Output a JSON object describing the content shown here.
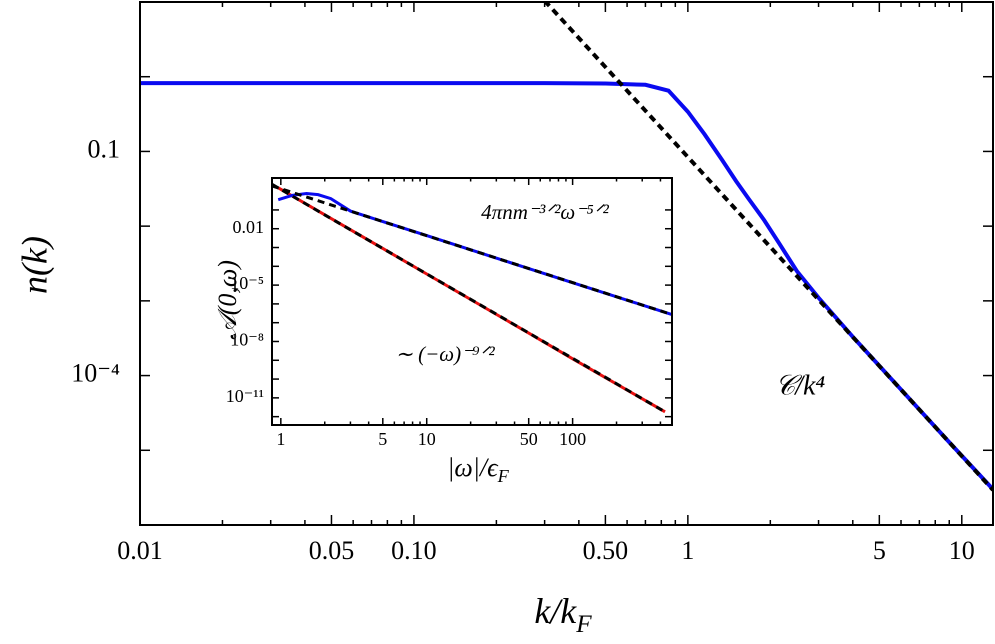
{
  "chart_data": [
    {
      "type": "line",
      "x_scale": "log",
      "y_scale": "log",
      "x_label": {
        "main": "k/k",
        "sub": "F"
      },
      "y_label": "n(k)",
      "xlim": [
        0.01,
        13
      ],
      "ylim": [
        1e-06,
        10
      ],
      "xticks": [
        0.01,
        0.05,
        {
          "value": 0.1,
          "label": "0.10"
        },
        {
          "value": 0.5,
          "label": "0.50"
        },
        1,
        5,
        10
      ],
      "xticks_minor": [
        0.02,
        0.03,
        0.04,
        0.06,
        0.07,
        0.08,
        0.09,
        0.2,
        0.3,
        0.4,
        0.6,
        0.7,
        0.8,
        0.9,
        2,
        3,
        4,
        6,
        7,
        8,
        9
      ],
      "yticks": [
        {
          "value": 0.1,
          "label": "0.1"
        },
        {
          "value": 0.0001,
          "label": "10⁻⁴"
        }
      ],
      "yticks_minor": [
        1,
        0.01,
        0.001,
        1e-05
      ],
      "annotations": [
        "𝒞/k⁴"
      ],
      "series": [
        {
          "color": "#0a0af0",
          "style": "solid",
          "x": [
            0.01,
            0.1,
            0.3,
            0.5,
            0.7,
            0.85,
            1,
            1.15,
            1.33,
            1.5,
            1.67,
            1.9,
            2.16,
            2.5,
            3,
            4,
            6,
            9,
            13
          ],
          "values": [
            0.82,
            0.82,
            0.82,
            0.81,
            0.78,
            0.65,
            0.34,
            0.17,
            0.078,
            0.04,
            0.023,
            0.012,
            0.0058,
            0.0025,
            0.0011,
            0.00033,
            6.5e-05,
            1.28e-05,
            3e-06
          ]
        },
        {
          "color": "#000000",
          "style": "dashed",
          "x": [
            0.3,
            13
          ],
          "values": [
            10.4,
            2.94e-06
          ]
        }
      ]
    },
    {
      "type": "line",
      "x_scale": "log",
      "y_scale": "log",
      "x_label": {
        "main": "|ω|/ϵ",
        "sub": "F"
      },
      "y_label": "𝒜(0,ω)",
      "xlim": [
        0.87,
        480
      ],
      "ylim": [
        3.6e-13,
        5
      ],
      "xticks": [
        1,
        5,
        10,
        50,
        100
      ],
      "xticks_minor": [
        2,
        3,
        4,
        6,
        7,
        8,
        9,
        20,
        30,
        40,
        60,
        70,
        80,
        90,
        200,
        300,
        400
      ],
      "yticks": [
        {
          "value": 0.01,
          "label": "0.01"
        },
        {
          "value": 1e-05,
          "label": "10⁻⁵"
        },
        {
          "value": 1e-08,
          "label": "10⁻⁸"
        },
        {
          "value": 1e-11,
          "label": "10⁻¹¹"
        }
      ],
      "yticks_minor": [
        0.1,
        0.001,
        0.0001,
        1e-06,
        1e-07,
        1e-09,
        1e-10,
        1e-12
      ],
      "annotations": [
        "4πnm⁻³ᐟ²ω⁻⁵ᐟ²",
        "∼ (−ω)⁻⁹ᐟ²"
      ],
      "series": [
        {
          "color": "#e81010",
          "style": "solid",
          "x": [
            0.96,
            2,
            5,
            10,
            50,
            100,
            430
          ],
          "values": [
            1.5,
            0.055,
            0.00089,
            3.9e-05,
            2.8e-08,
            1.2e-09,
            1.8e-12
          ]
        },
        {
          "color": "#0a0af0",
          "style": "solid",
          "x": [
            0.96,
            1.2,
            1.5,
            1.8,
            2.2,
            3,
            5,
            10,
            50,
            100,
            480
          ],
          "values": [
            0.35,
            0.6,
            0.75,
            0.65,
            0.4,
            0.087,
            0.024,
            0.0043,
            7.6e-05,
            1.35e-05,
            2.7e-07
          ]
        },
        {
          "color": "#000000",
          "style": "dashed",
          "x": [
            0.87,
            430
          ],
          "values": [
            2.3,
            1.8e-12
          ]
        },
        {
          "color": "#000000",
          "style": "dashed",
          "x": [
            0.87,
            480
          ],
          "values": [
            1.9,
            2.7e-07
          ]
        }
      ]
    }
  ]
}
